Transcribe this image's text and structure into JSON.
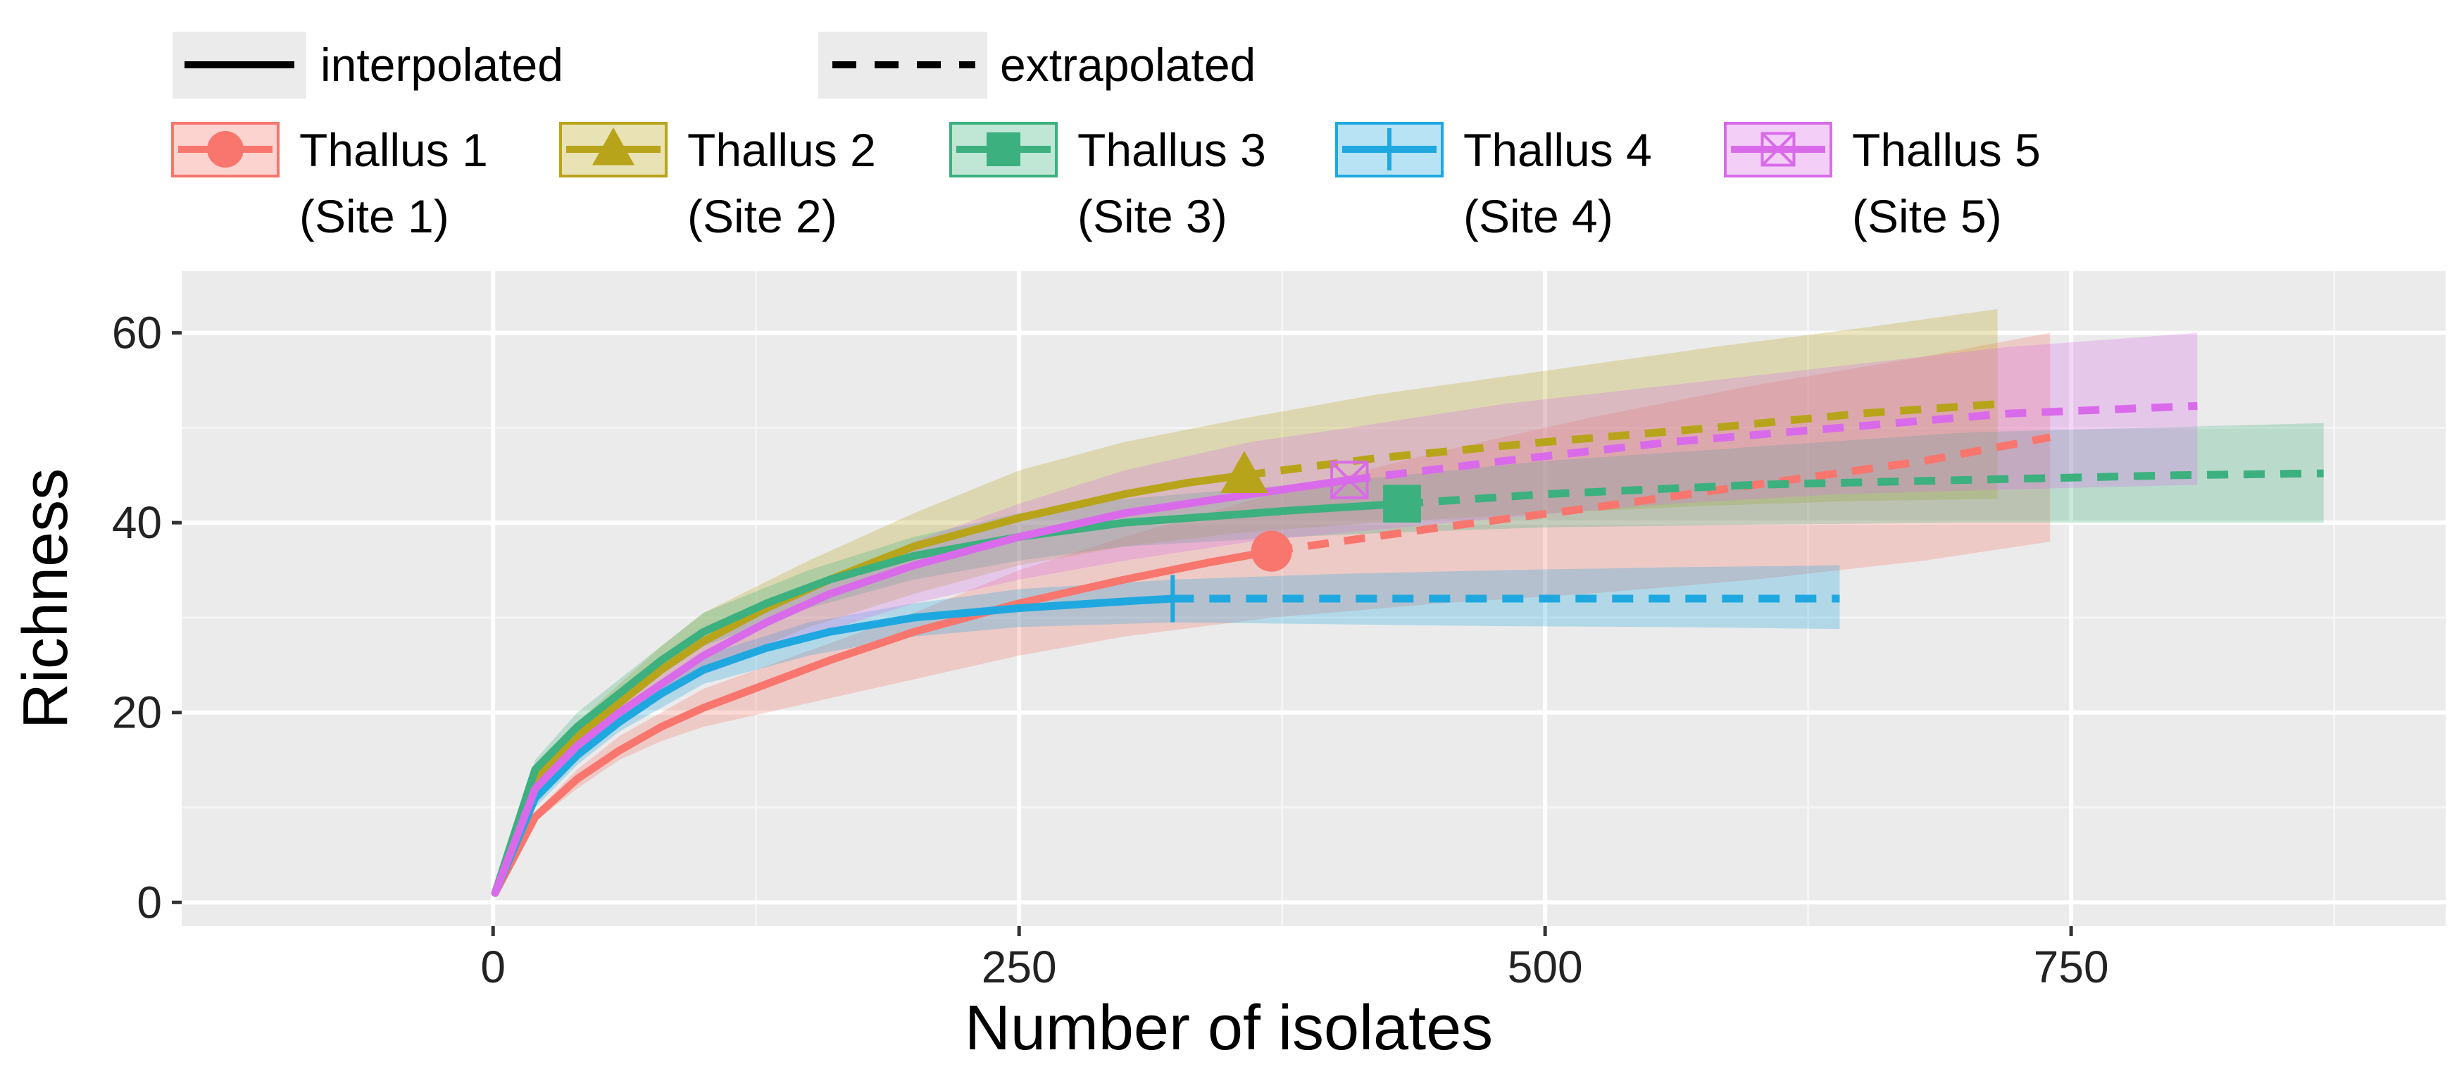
{
  "chart_data": {
    "type": "line",
    "title": "",
    "xlabel": "Number of isolates",
    "ylabel": "Richness",
    "xlim": [
      -148,
      928
    ],
    "ylim": [
      -2.5,
      66.5
    ],
    "xticks": [
      0,
      250,
      500,
      750
    ],
    "yticks": [
      0,
      20,
      40,
      60
    ],
    "xtick_labels": [
      "0",
      "250",
      "500",
      "750"
    ],
    "ytick_labels": [
      "0",
      "20",
      "40",
      "60"
    ],
    "grid": true,
    "linetype_legend": [
      {
        "label": "interpolated",
        "style": "solid"
      },
      {
        "label": "extrapolated",
        "style": "dashed"
      }
    ],
    "series": [
      {
        "name": "Thallus 1",
        "name_sub": "(Site 1)",
        "color": "#F8766D",
        "marker": "circle",
        "observed": {
          "x": 370,
          "y": 37
        },
        "interpolated": [
          [
            1,
            1
          ],
          [
            20,
            9
          ],
          [
            40,
            13
          ],
          [
            60,
            16
          ],
          [
            80,
            18.5
          ],
          [
            100,
            20.5
          ],
          [
            130,
            23
          ],
          [
            160,
            25.5
          ],
          [
            200,
            28.5
          ],
          [
            250,
            31.5
          ],
          [
            300,
            34
          ],
          [
            340,
            35.8
          ],
          [
            370,
            37
          ]
        ],
        "extrapolated": [
          [
            370,
            37
          ],
          [
            450,
            39.5
          ],
          [
            520,
            41.5
          ],
          [
            600,
            44
          ],
          [
            680,
            46.5
          ],
          [
            740,
            49
          ]
        ],
        "ci_lower": [
          [
            1,
            1
          ],
          [
            20,
            8.5
          ],
          [
            40,
            12
          ],
          [
            60,
            15
          ],
          [
            80,
            17
          ],
          [
            100,
            18.5
          ],
          [
            150,
            21
          ],
          [
            200,
            23.5
          ],
          [
            250,
            26
          ],
          [
            300,
            28
          ],
          [
            370,
            30
          ],
          [
            450,
            31.5
          ],
          [
            520,
            32.5
          ],
          [
            600,
            34
          ],
          [
            680,
            36
          ],
          [
            740,
            38
          ]
        ],
        "ci_upper": [
          [
            1,
            1
          ],
          [
            20,
            9.5
          ],
          [
            40,
            14
          ],
          [
            60,
            17.5
          ],
          [
            80,
            20
          ],
          [
            100,
            22.5
          ],
          [
            150,
            26.5
          ],
          [
            200,
            30.5
          ],
          [
            250,
            35
          ],
          [
            300,
            38.5
          ],
          [
            370,
            43
          ],
          [
            450,
            47.5
          ],
          [
            520,
            51
          ],
          [
            600,
            54.5
          ],
          [
            680,
            57.5
          ],
          [
            740,
            60
          ]
        ]
      },
      {
        "name": "Thallus 2",
        "name_sub": "(Site 2)",
        "color": "#B8A41A",
        "marker": "triangle",
        "observed": {
          "x": 357,
          "y": 45
        },
        "interpolated": [
          [
            1,
            1
          ],
          [
            20,
            13
          ],
          [
            40,
            17.5
          ],
          [
            60,
            21
          ],
          [
            80,
            24.5
          ],
          [
            100,
            27.5
          ],
          [
            130,
            31
          ],
          [
            160,
            34
          ],
          [
            200,
            37.5
          ],
          [
            250,
            40.5
          ],
          [
            300,
            43
          ],
          [
            330,
            44.2
          ],
          [
            357,
            45
          ]
        ],
        "extrapolated": [
          [
            357,
            45
          ],
          [
            420,
            46.8
          ],
          [
            500,
            48.5
          ],
          [
            580,
            50
          ],
          [
            650,
            51.5
          ],
          [
            715,
            52.5
          ]
        ],
        "ci_lower": [
          [
            1,
            1
          ],
          [
            20,
            12
          ],
          [
            40,
            16
          ],
          [
            60,
            19
          ],
          [
            80,
            22
          ],
          [
            100,
            24.5
          ],
          [
            150,
            29
          ],
          [
            200,
            32.5
          ],
          [
            250,
            35.5
          ],
          [
            300,
            37.5
          ],
          [
            357,
            39
          ],
          [
            420,
            40
          ],
          [
            500,
            41
          ],
          [
            580,
            41.8
          ],
          [
            650,
            42.3
          ],
          [
            715,
            42.5
          ]
        ],
        "ci_upper": [
          [
            1,
            1
          ],
          [
            20,
            14
          ],
          [
            40,
            19
          ],
          [
            60,
            23
          ],
          [
            80,
            27
          ],
          [
            100,
            30.5
          ],
          [
            150,
            36
          ],
          [
            200,
            41
          ],
          [
            250,
            45.5
          ],
          [
            300,
            48.5
          ],
          [
            357,
            51
          ],
          [
            420,
            53.5
          ],
          [
            500,
            56
          ],
          [
            580,
            58.5
          ],
          [
            650,
            60.5
          ],
          [
            715,
            62.5
          ]
        ]
      },
      {
        "name": "Thallus 3",
        "name_sub": "(Site 3)",
        "color": "#3CB07F",
        "marker": "square",
        "observed": {
          "x": 432,
          "y": 42
        },
        "interpolated": [
          [
            1,
            1
          ],
          [
            20,
            14
          ],
          [
            40,
            18.5
          ],
          [
            60,
            22
          ],
          [
            80,
            25.5
          ],
          [
            100,
            28.5
          ],
          [
            130,
            31.5
          ],
          [
            160,
            34
          ],
          [
            200,
            36.5
          ],
          [
            250,
            38.5
          ],
          [
            300,
            40
          ],
          [
            380,
            41.3
          ],
          [
            432,
            42
          ]
        ],
        "extrapolated": [
          [
            432,
            42
          ],
          [
            500,
            43
          ],
          [
            600,
            44
          ],
          [
            700,
            44.5
          ],
          [
            800,
            45
          ],
          [
            870,
            45.2
          ]
        ],
        "ci_lower": [
          [
            1,
            1
          ],
          [
            20,
            13
          ],
          [
            40,
            17.5
          ],
          [
            60,
            21
          ],
          [
            80,
            24
          ],
          [
            100,
            27
          ],
          [
            150,
            31
          ],
          [
            200,
            34
          ],
          [
            250,
            36
          ],
          [
            300,
            37.5
          ],
          [
            380,
            38.5
          ],
          [
            432,
            39
          ],
          [
            500,
            39.5
          ],
          [
            600,
            39.8
          ],
          [
            700,
            40
          ],
          [
            870,
            40
          ]
        ],
        "ci_upper": [
          [
            1,
            1
          ],
          [
            20,
            15
          ],
          [
            40,
            20
          ],
          [
            60,
            23.5
          ],
          [
            80,
            27
          ],
          [
            100,
            30.5
          ],
          [
            150,
            35
          ],
          [
            200,
            38.5
          ],
          [
            250,
            41
          ],
          [
            300,
            42.5
          ],
          [
            380,
            44
          ],
          [
            432,
            45
          ],
          [
            500,
            46.5
          ],
          [
            600,
            48
          ],
          [
            700,
            49.5
          ],
          [
            870,
            50.5
          ]
        ]
      },
      {
        "name": "Thallus 4",
        "name_sub": "(Site 4)",
        "color": "#1FA8E0",
        "marker": "vline",
        "observed": {
          "x": 323,
          "y": 32
        },
        "interpolated": [
          [
            1,
            1
          ],
          [
            20,
            11
          ],
          [
            40,
            15.5
          ],
          [
            60,
            19
          ],
          [
            80,
            22
          ],
          [
            100,
            24.5
          ],
          [
            130,
            26.8
          ],
          [
            160,
            28.5
          ],
          [
            200,
            30
          ],
          [
            250,
            31
          ],
          [
            300,
            31.7
          ],
          [
            323,
            32
          ]
        ],
        "extrapolated": [
          [
            323,
            32
          ],
          [
            400,
            32
          ],
          [
            480,
            32
          ],
          [
            560,
            32
          ],
          [
            640,
            32
          ]
        ],
        "ci_lower": [
          [
            1,
            1
          ],
          [
            20,
            10
          ],
          [
            40,
            14.5
          ],
          [
            60,
            18
          ],
          [
            80,
            20.5
          ],
          [
            100,
            23
          ],
          [
            150,
            26
          ],
          [
            200,
            28
          ],
          [
            250,
            29
          ],
          [
            323,
            29.5
          ],
          [
            400,
            29.3
          ],
          [
            480,
            29.1
          ],
          [
            560,
            29
          ],
          [
            640,
            28.8
          ]
        ],
        "ci_upper": [
          [
            1,
            1
          ],
          [
            20,
            12
          ],
          [
            40,
            16.5
          ],
          [
            60,
            20
          ],
          [
            80,
            23
          ],
          [
            100,
            26
          ],
          [
            150,
            29.5
          ],
          [
            200,
            31.5
          ],
          [
            250,
            33
          ],
          [
            323,
            34
          ],
          [
            400,
            34.6
          ],
          [
            480,
            35
          ],
          [
            560,
            35.3
          ],
          [
            640,
            35.5
          ]
        ]
      },
      {
        "name": "Thallus 5",
        "name_sub": "(Site 5)",
        "color": "#D96BEA",
        "marker": "boxx",
        "observed": {
          "x": 407,
          "y": 44.5
        },
        "interpolated": [
          [
            1,
            1
          ],
          [
            20,
            12
          ],
          [
            40,
            16.5
          ],
          [
            60,
            20
          ],
          [
            80,
            23
          ],
          [
            100,
            26
          ],
          [
            130,
            29.5
          ],
          [
            160,
            32.5
          ],
          [
            200,
            35.5
          ],
          [
            250,
            38.5
          ],
          [
            300,
            41
          ],
          [
            360,
            43
          ],
          [
            407,
            44.5
          ]
        ],
        "extrapolated": [
          [
            407,
            44.5
          ],
          [
            480,
            46.5
          ],
          [
            560,
            48.5
          ],
          [
            640,
            50
          ],
          [
            720,
            51.5
          ],
          [
            810,
            52.3
          ]
        ],
        "ci_lower": [
          [
            1,
            1
          ],
          [
            20,
            11
          ],
          [
            40,
            15.5
          ],
          [
            60,
            18.5
          ],
          [
            80,
            21.5
          ],
          [
            100,
            24
          ],
          [
            150,
            28
          ],
          [
            200,
            31.5
          ],
          [
            250,
            34
          ],
          [
            300,
            36
          ],
          [
            360,
            38
          ],
          [
            407,
            39
          ],
          [
            480,
            40.5
          ],
          [
            560,
            42
          ],
          [
            640,
            43
          ],
          [
            720,
            43.5
          ],
          [
            810,
            44
          ]
        ],
        "ci_upper": [
          [
            1,
            1
          ],
          [
            20,
            13
          ],
          [
            40,
            17.5
          ],
          [
            60,
            21.5
          ],
          [
            80,
            25
          ],
          [
            100,
            28
          ],
          [
            150,
            33
          ],
          [
            200,
            38
          ],
          [
            250,
            42
          ],
          [
            300,
            45.5
          ],
          [
            360,
            48.5
          ],
          [
            407,
            50
          ],
          [
            480,
            52.5
          ],
          [
            560,
            54.5
          ],
          [
            640,
            56.5
          ],
          [
            720,
            58.5
          ],
          [
            810,
            60
          ]
        ]
      }
    ]
  }
}
